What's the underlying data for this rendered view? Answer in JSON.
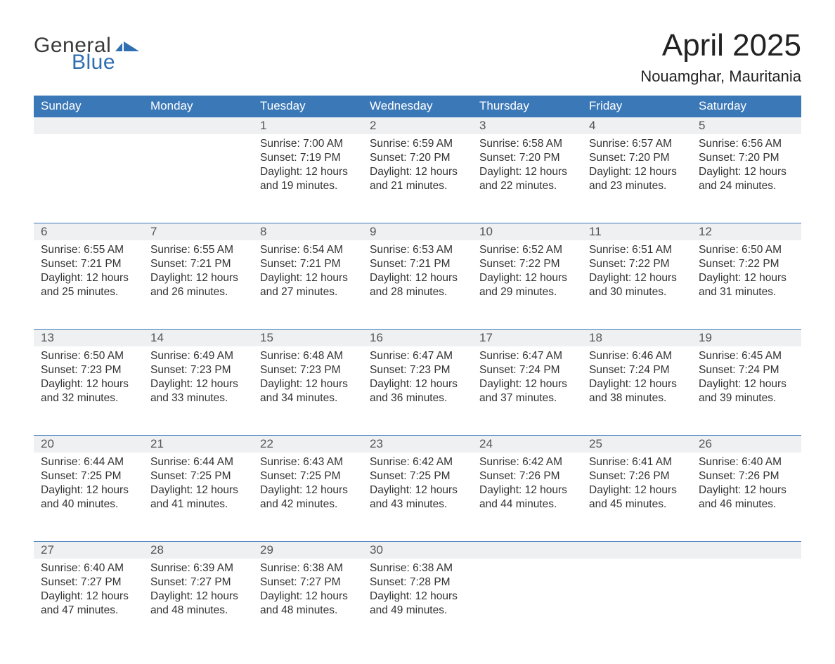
{
  "logo": {
    "word1": "General",
    "word2": "Blue"
  },
  "title": "April 2025",
  "location": "Nouamghar, Mauritania",
  "colors": {
    "header_bg": "#3b78b8",
    "daynum_bg": "#eef0f2",
    "text": "#333333",
    "logo_blue": "#2f6fb0",
    "bg": "#ffffff"
  },
  "columns": [
    "Sunday",
    "Monday",
    "Tuesday",
    "Wednesday",
    "Thursday",
    "Friday",
    "Saturday"
  ],
  "weeks": [
    {
      "nums": [
        "",
        "",
        "1",
        "2",
        "3",
        "4",
        "5"
      ],
      "cells": [
        null,
        null,
        {
          "sunrise": "Sunrise: 7:00 AM",
          "sunset": "Sunset: 7:19 PM",
          "day1": "Daylight: 12 hours",
          "day2": "and 19 minutes."
        },
        {
          "sunrise": "Sunrise: 6:59 AM",
          "sunset": "Sunset: 7:20 PM",
          "day1": "Daylight: 12 hours",
          "day2": "and 21 minutes."
        },
        {
          "sunrise": "Sunrise: 6:58 AM",
          "sunset": "Sunset: 7:20 PM",
          "day1": "Daylight: 12 hours",
          "day2": "and 22 minutes."
        },
        {
          "sunrise": "Sunrise: 6:57 AM",
          "sunset": "Sunset: 7:20 PM",
          "day1": "Daylight: 12 hours",
          "day2": "and 23 minutes."
        },
        {
          "sunrise": "Sunrise: 6:56 AM",
          "sunset": "Sunset: 7:20 PM",
          "day1": "Daylight: 12 hours",
          "day2": "and 24 minutes."
        }
      ]
    },
    {
      "nums": [
        "6",
        "7",
        "8",
        "9",
        "10",
        "11",
        "12"
      ],
      "cells": [
        {
          "sunrise": "Sunrise: 6:55 AM",
          "sunset": "Sunset: 7:21 PM",
          "day1": "Daylight: 12 hours",
          "day2": "and 25 minutes."
        },
        {
          "sunrise": "Sunrise: 6:55 AM",
          "sunset": "Sunset: 7:21 PM",
          "day1": "Daylight: 12 hours",
          "day2": "and 26 minutes."
        },
        {
          "sunrise": "Sunrise: 6:54 AM",
          "sunset": "Sunset: 7:21 PM",
          "day1": "Daylight: 12 hours",
          "day2": "and 27 minutes."
        },
        {
          "sunrise": "Sunrise: 6:53 AM",
          "sunset": "Sunset: 7:21 PM",
          "day1": "Daylight: 12 hours",
          "day2": "and 28 minutes."
        },
        {
          "sunrise": "Sunrise: 6:52 AM",
          "sunset": "Sunset: 7:22 PM",
          "day1": "Daylight: 12 hours",
          "day2": "and 29 minutes."
        },
        {
          "sunrise": "Sunrise: 6:51 AM",
          "sunset": "Sunset: 7:22 PM",
          "day1": "Daylight: 12 hours",
          "day2": "and 30 minutes."
        },
        {
          "sunrise": "Sunrise: 6:50 AM",
          "sunset": "Sunset: 7:22 PM",
          "day1": "Daylight: 12 hours",
          "day2": "and 31 minutes."
        }
      ]
    },
    {
      "nums": [
        "13",
        "14",
        "15",
        "16",
        "17",
        "18",
        "19"
      ],
      "cells": [
        {
          "sunrise": "Sunrise: 6:50 AM",
          "sunset": "Sunset: 7:23 PM",
          "day1": "Daylight: 12 hours",
          "day2": "and 32 minutes."
        },
        {
          "sunrise": "Sunrise: 6:49 AM",
          "sunset": "Sunset: 7:23 PM",
          "day1": "Daylight: 12 hours",
          "day2": "and 33 minutes."
        },
        {
          "sunrise": "Sunrise: 6:48 AM",
          "sunset": "Sunset: 7:23 PM",
          "day1": "Daylight: 12 hours",
          "day2": "and 34 minutes."
        },
        {
          "sunrise": "Sunrise: 6:47 AM",
          "sunset": "Sunset: 7:23 PM",
          "day1": "Daylight: 12 hours",
          "day2": "and 36 minutes."
        },
        {
          "sunrise": "Sunrise: 6:47 AM",
          "sunset": "Sunset: 7:24 PM",
          "day1": "Daylight: 12 hours",
          "day2": "and 37 minutes."
        },
        {
          "sunrise": "Sunrise: 6:46 AM",
          "sunset": "Sunset: 7:24 PM",
          "day1": "Daylight: 12 hours",
          "day2": "and 38 minutes."
        },
        {
          "sunrise": "Sunrise: 6:45 AM",
          "sunset": "Sunset: 7:24 PM",
          "day1": "Daylight: 12 hours",
          "day2": "and 39 minutes."
        }
      ]
    },
    {
      "nums": [
        "20",
        "21",
        "22",
        "23",
        "24",
        "25",
        "26"
      ],
      "cells": [
        {
          "sunrise": "Sunrise: 6:44 AM",
          "sunset": "Sunset: 7:25 PM",
          "day1": "Daylight: 12 hours",
          "day2": "and 40 minutes."
        },
        {
          "sunrise": "Sunrise: 6:44 AM",
          "sunset": "Sunset: 7:25 PM",
          "day1": "Daylight: 12 hours",
          "day2": "and 41 minutes."
        },
        {
          "sunrise": "Sunrise: 6:43 AM",
          "sunset": "Sunset: 7:25 PM",
          "day1": "Daylight: 12 hours",
          "day2": "and 42 minutes."
        },
        {
          "sunrise": "Sunrise: 6:42 AM",
          "sunset": "Sunset: 7:25 PM",
          "day1": "Daylight: 12 hours",
          "day2": "and 43 minutes."
        },
        {
          "sunrise": "Sunrise: 6:42 AM",
          "sunset": "Sunset: 7:26 PM",
          "day1": "Daylight: 12 hours",
          "day2": "and 44 minutes."
        },
        {
          "sunrise": "Sunrise: 6:41 AM",
          "sunset": "Sunset: 7:26 PM",
          "day1": "Daylight: 12 hours",
          "day2": "and 45 minutes."
        },
        {
          "sunrise": "Sunrise: 6:40 AM",
          "sunset": "Sunset: 7:26 PM",
          "day1": "Daylight: 12 hours",
          "day2": "and 46 minutes."
        }
      ]
    },
    {
      "nums": [
        "27",
        "28",
        "29",
        "30",
        "",
        "",
        ""
      ],
      "cells": [
        {
          "sunrise": "Sunrise: 6:40 AM",
          "sunset": "Sunset: 7:27 PM",
          "day1": "Daylight: 12 hours",
          "day2": "and 47 minutes."
        },
        {
          "sunrise": "Sunrise: 6:39 AM",
          "sunset": "Sunset: 7:27 PM",
          "day1": "Daylight: 12 hours",
          "day2": "and 48 minutes."
        },
        {
          "sunrise": "Sunrise: 6:38 AM",
          "sunset": "Sunset: 7:27 PM",
          "day1": "Daylight: 12 hours",
          "day2": "and 48 minutes."
        },
        {
          "sunrise": "Sunrise: 6:38 AM",
          "sunset": "Sunset: 7:28 PM",
          "day1": "Daylight: 12 hours",
          "day2": "and 49 minutes."
        },
        null,
        null,
        null
      ]
    }
  ]
}
